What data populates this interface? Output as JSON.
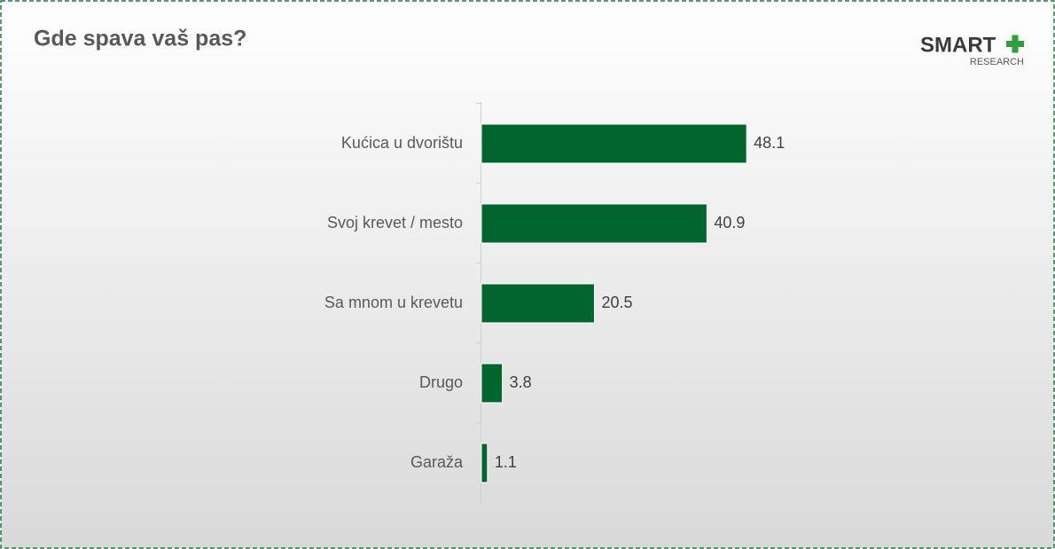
{
  "chart_data": {
    "type": "bar",
    "orientation": "horizontal",
    "title": "Gde spava vaš pas?",
    "categories": [
      "Kućica u dvorištu",
      "Svoj krevet / mesto",
      "Sa mnom u krevetu",
      "Drugo",
      "Garaža"
    ],
    "values": [
      48.1,
      40.9,
      20.5,
      3.8,
      1.1
    ],
    "color": "#00662e"
  },
  "logo": {
    "name": "SMART",
    "sub": "RESEARCH"
  }
}
